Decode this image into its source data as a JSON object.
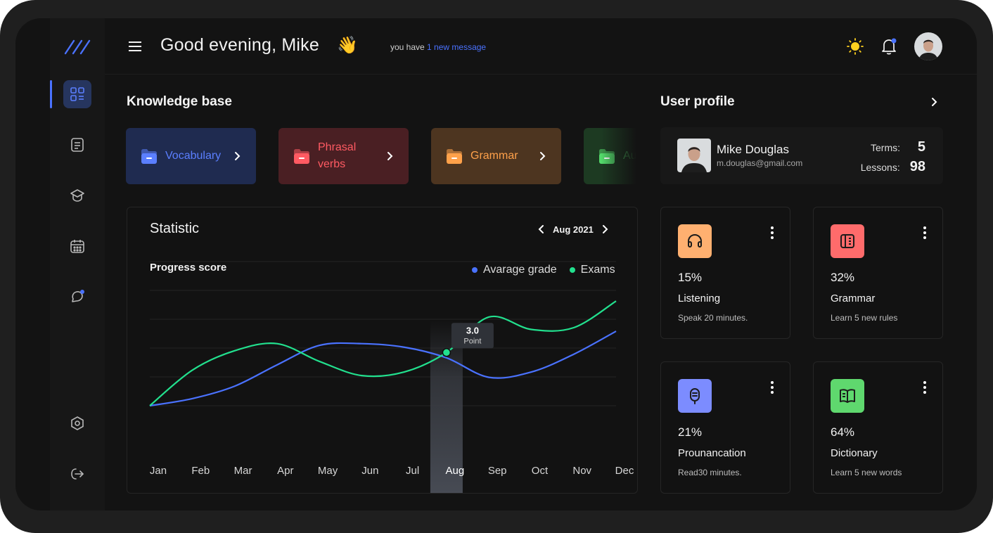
{
  "header": {
    "greeting": "Good evening, Mike",
    "wave_emoji": "👋",
    "message_prefix": "you have",
    "message_link": "1 new message"
  },
  "sidebar": {
    "items": [
      "dashboard-icon",
      "notes-icon",
      "courses-icon",
      "calendar-icon",
      "chat-icon",
      "settings-icon",
      "logout-icon"
    ]
  },
  "knowledge_base": {
    "title": "Knowledge base",
    "cards": [
      {
        "label": "Vocabulary",
        "bg": "#1f2b50",
        "color": "#5b7fff"
      },
      {
        "label": "Phrasal verbs",
        "bg": "#4a1f23",
        "color": "#ff5a62"
      },
      {
        "label": "Grammar",
        "bg": "#4d3520",
        "color": "#ffa14a"
      },
      {
        "label": "Au",
        "bg": "#1d3a22",
        "color": "#53d86a"
      }
    ]
  },
  "statistic": {
    "title": "Statistic",
    "month": "Aug 2021",
    "chart_title": "Progress score",
    "tooltip_value": "3.0",
    "tooltip_label": "Point"
  },
  "chart_data": {
    "type": "line",
    "title": "Progress score",
    "categories": [
      "Jan",
      "Feb",
      "Mar",
      "Apr",
      "May",
      "Jun",
      "Jul",
      "Aug",
      "Sep",
      "Oct",
      "Nov",
      "Dec"
    ],
    "highlight": "Aug",
    "series": [
      {
        "name": "Avarage grade",
        "color": "#4a72ff",
        "values": [
          0.0,
          0.4,
          1.1,
          2.3,
          3.4,
          3.5,
          3.3,
          2.7,
          1.6,
          1.9,
          2.9,
          4.2
        ]
      },
      {
        "name": "Exams",
        "color": "#22e08e",
        "values": [
          0.0,
          2.0,
          3.1,
          3.5,
          2.5,
          1.7,
          1.9,
          3.0,
          5.0,
          4.3,
          4.4,
          5.9
        ]
      }
    ],
    "ylim": [
      0,
      6.5
    ],
    "grid": true,
    "legend": "top-right"
  },
  "user_profile": {
    "title": "User profile",
    "name": "Mike Douglas",
    "email": "m.douglas@gmail.com",
    "terms_label": "Terms:",
    "terms_value": "5",
    "lessons_label": "Lessons:",
    "lessons_value": "98"
  },
  "skills": [
    {
      "percent": "15%",
      "name": "Listening",
      "desc": "Speak 20 minutes.",
      "color": "#ffb070",
      "icon": "headphones-icon"
    },
    {
      "percent": "32%",
      "name": "Grammar",
      "desc": "Learn 5 new rules",
      "color": "#ff6b6b",
      "icon": "book-icon"
    },
    {
      "percent": "21%",
      "name": "Prounancation",
      "desc": "Read30 minutes.",
      "color": "#7c8cff",
      "icon": "microphone-icon"
    },
    {
      "percent": "64%",
      "name": "Dictionary",
      "desc": "Learn 5 new words",
      "color": "#5fd86e",
      "icon": "dictionary-icon"
    }
  ]
}
